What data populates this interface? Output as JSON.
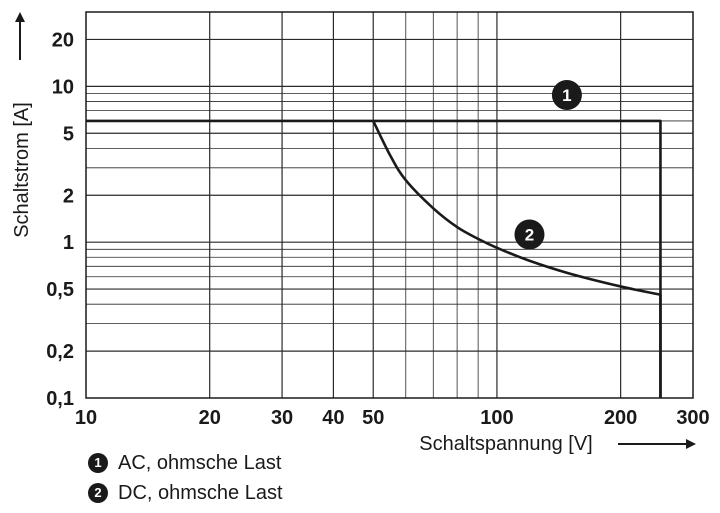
{
  "chart_data": {
    "type": "line",
    "title": "",
    "xlabel": "Schaltspannung [V]",
    "ylabel": "Schaltstrom [A]",
    "xscale": "log",
    "yscale": "log",
    "xlim": [
      10,
      300
    ],
    "ylim": [
      0.1,
      30
    ],
    "x_ticks": [
      10,
      20,
      30,
      40,
      50,
      100,
      200,
      300
    ],
    "x_tick_labels": [
      "10",
      "20",
      "30",
      "40",
      "50",
      "100",
      "200",
      "300"
    ],
    "y_ticks": [
      0.1,
      0.2,
      0.5,
      1,
      2,
      5,
      10,
      20
    ],
    "y_tick_labels": [
      "0,1",
      "0,2",
      "0,5",
      "1",
      "2",
      "5",
      "10",
      "20"
    ],
    "grid": true,
    "series": [
      {
        "name": "AC, ohmsche Last",
        "marker": "1",
        "points": [
          [
            10,
            6
          ],
          [
            250,
            6
          ],
          [
            250,
            0.1
          ]
        ]
      },
      {
        "name": "DC, ohmsche Last",
        "marker": "2",
        "points": [
          [
            50,
            6
          ],
          [
            55,
            3.6
          ],
          [
            60,
            2.5
          ],
          [
            70,
            1.65
          ],
          [
            80,
            1.25
          ],
          [
            90,
            1.05
          ],
          [
            100,
            0.92
          ],
          [
            120,
            0.76
          ],
          [
            150,
            0.63
          ],
          [
            200,
            0.52
          ],
          [
            250,
            0.46
          ],
          [
            250,
            0.1
          ]
        ]
      }
    ],
    "legend": [
      {
        "marker": "1",
        "label": "AC, ohmsche Last"
      },
      {
        "marker": "2",
        "label": "DC, ohmsche Last"
      }
    ]
  }
}
